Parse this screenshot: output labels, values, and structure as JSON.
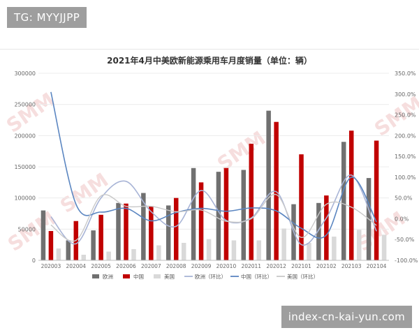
{
  "overlay": {
    "tag_text": "TG: MYYJJPP",
    "url_text": "index-cn-kai-yun.com",
    "watermark_text": "SMM"
  },
  "colors": {
    "eu_bar": "#707070",
    "cn_bar": "#c00000",
    "us_bar": "#d9d9d9",
    "eu_line": "#a8b4d6",
    "cn_line": "#5b86c1",
    "us_line": "#c9c9c9",
    "watermark": "#e6a3a3"
  },
  "chart_data": {
    "type": "bar",
    "title": "2021年4月中美欧新能源乘用车月度销量（单位：辆）",
    "categories": [
      "202003",
      "202004",
      "202005",
      "202006",
      "202007",
      "202008",
      "202009",
      "202010",
      "202011",
      "202012",
      "202101",
      "202102",
      "202103",
      "202104"
    ],
    "y_left": {
      "min": 0,
      "max": 300000,
      "ticks": [
        "0",
        "50000",
        "100000",
        "150000",
        "200000",
        "250000",
        "300000"
      ]
    },
    "y_right": {
      "min": -100,
      "max": 350,
      "ticks": [
        "-100.0%",
        "-50.0%",
        "0.0%",
        "50.0%",
        "100.0%",
        "150.0%",
        "200.0%",
        "250.0%",
        "300.0%",
        "350.0%"
      ]
    },
    "bar_series": [
      {
        "name": "欧洲",
        "values": [
          80000,
          32000,
          48000,
          92000,
          108000,
          88000,
          148000,
          142000,
          145000,
          240000,
          90000,
          92000,
          190000,
          132000
        ]
      },
      {
        "name": "中国",
        "values": [
          47000,
          63000,
          73000,
          91000,
          87000,
          100000,
          125000,
          148000,
          187000,
          222000,
          170000,
          104000,
          208000,
          192000
        ]
      },
      {
        "name": "美国",
        "values": [
          19000,
          9000,
          14000,
          18000,
          24000,
          28000,
          34000,
          32000,
          32000,
          51000,
          28000,
          38000,
          49000,
          41000
        ]
      }
    ],
    "line_series": [
      {
        "name": "欧洲（环比）",
        "values": [
          5,
          -60,
          50,
          90,
          17,
          -18,
          68,
          -4,
          2,
          65,
          -62,
          2,
          105,
          -30
        ]
      },
      {
        "name": "中国（环比）",
        "values": [
          305,
          35,
          16,
          25,
          -5,
          15,
          25,
          18,
          26,
          19,
          -23,
          -39,
          100,
          -8
        ]
      },
      {
        "name": "美国（环比）",
        "values": [
          -15,
          -52,
          55,
          30,
          30,
          17,
          21,
          -6,
          0,
          58,
          -45,
          35,
          28,
          -16
        ]
      }
    ],
    "legend_position": "bottom"
  }
}
